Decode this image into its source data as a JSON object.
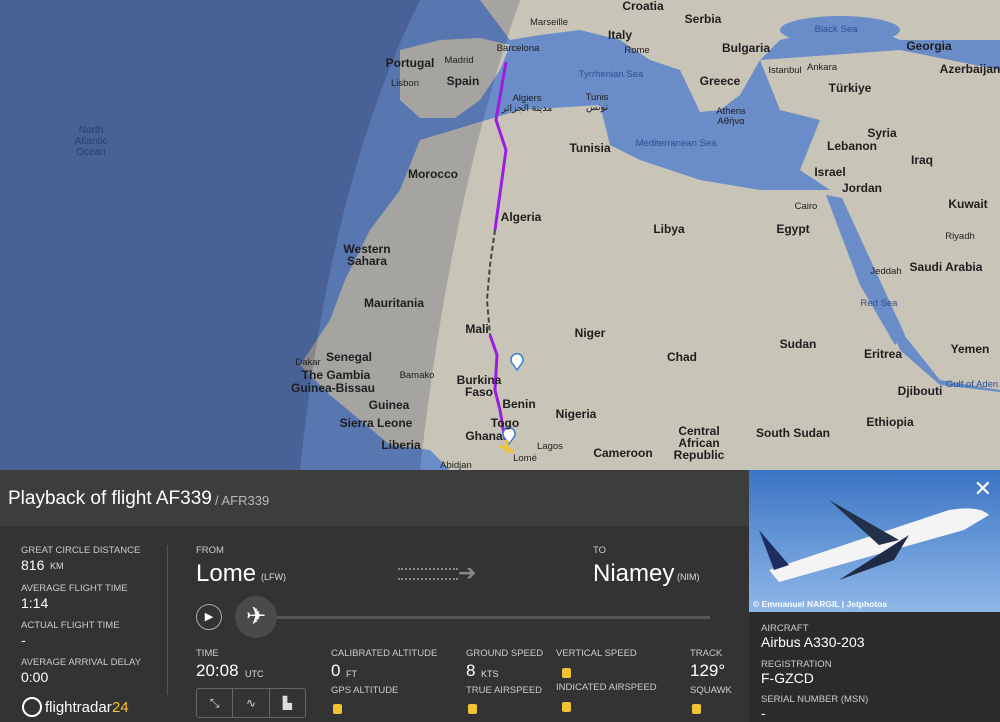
{
  "map": {
    "labels": [
      "Croatia",
      "Serbia",
      "Marseille",
      "Italy",
      "Barcelona",
      "Bulgaria",
      "Black Sea",
      "Georgia",
      "Portugal",
      "Madrid",
      "Rome",
      "Istanbul",
      "Ankara",
      "Azerbaijan",
      "Lisbon",
      "Spain",
      "Tyrrhenian Sea",
      "Greece",
      "Türkiye",
      "Algiers",
      "مدينة الجزائر",
      "Tunis",
      "تونس",
      "Athens",
      "Αθήνα",
      "North",
      "Atlantic",
      "Ocean",
      "Tunisia",
      "Mediterranean Sea",
      "Syria",
      "Lebanon",
      "Iraq",
      "Morocco",
      "Israel",
      "Jordan",
      "Cairo",
      "Kuwait",
      "Algeria",
      "Libya",
      "Egypt",
      "Riyadh",
      "Saudi Arabia",
      "Jeddah",
      "Western",
      "Sahara",
      "Red Sea",
      "Mauritania",
      "Mali",
      "Niger",
      "Chad",
      "Sudan",
      "Eritrea",
      "Yemen",
      "Dakar",
      "Senegal",
      "Bamako",
      "The Gambia",
      "Guinea-Bissau",
      "Burkina",
      "Faso",
      "Djibouti",
      "Gulf of Aden",
      "Benin",
      "Guinea",
      "Nigeria",
      "Togo",
      "Ethiopia",
      "Sierra Leone",
      "Ghana",
      "Lagos",
      "Liberia",
      "Central",
      "African",
      "Republic",
      "South Sudan",
      "Cameroon",
      "Lomé",
      "Abidjan"
    ]
  },
  "header": {
    "title": "Playback of flight AF339",
    "callsign": "/ AFR339"
  },
  "stats": {
    "distance_label": "GREAT CIRCLE DISTANCE",
    "distance": "816",
    "distance_unit": "KM",
    "avg_time_label": "AVERAGE FLIGHT TIME",
    "avg_time": "1:14",
    "actual_time_label": "ACTUAL FLIGHT TIME",
    "actual_time": "-",
    "delay_label": "AVERAGE ARRIVAL DELAY",
    "delay": "0:00",
    "logo": "flightradar",
    "logo_num": "24"
  },
  "route": {
    "from_label": "FROM",
    "from": "Lome",
    "from_code": "(LFW)",
    "to_label": "TO",
    "to": "Niamey",
    "to_code": "(NIM)"
  },
  "telemetry": {
    "time_label": "TIME",
    "time": "20:08",
    "time_unit": "UTC",
    "cal_alt_label": "CALIBRATED ALTITUDE",
    "cal_alt": "0",
    "cal_alt_unit": "FT",
    "gps_alt_label": "GPS ALTITUDE",
    "ground_speed_label": "GROUND SPEED",
    "ground_speed": "8",
    "ground_speed_unit": "KTS",
    "true_airspeed_label": "TRUE AIRSPEED",
    "vertical_speed_label": "VERTICAL SPEED",
    "indicated_airspeed_label": "INDICATED AIRSPEED",
    "track_label": "TRACK",
    "track": "129°",
    "squawk_label": "SQUAWK"
  },
  "aircraft": {
    "photo_credit": "© Emmanuel NARGIL | Jetphotos",
    "aircraft_label": "AIRCRAFT",
    "aircraft": "Airbus A330-203",
    "registration_label": "REGISTRATION",
    "registration": "F-GZCD",
    "serial_label": "SERIAL NUMBER (MSN)",
    "serial": "-"
  }
}
